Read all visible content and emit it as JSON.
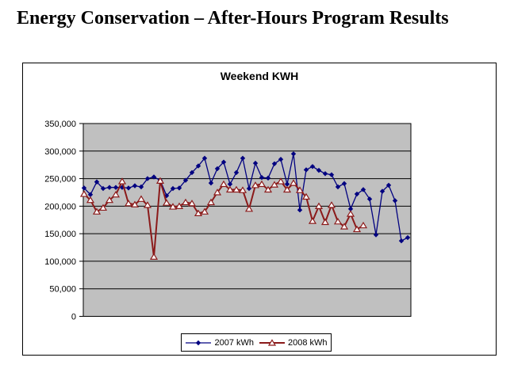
{
  "page": {
    "title": "Energy Conservation – After-Hours Program Results"
  },
  "chart": {
    "title": "Weekend KWH"
  },
  "chart_data": {
    "type": "line",
    "title": "Weekend KWH",
    "legend_position": "bottom",
    "plot_bg": "#c0c0c0",
    "gridline_color": "#000000",
    "x_axis": {
      "label": "",
      "tick_labels_visible": false
    },
    "y_axis": {
      "label": "",
      "min": 0,
      "max": 350000,
      "tick_interval": 50000,
      "tick_values": [
        350000,
        300000,
        250000,
        200000,
        150000,
        100000,
        50000,
        0
      ],
      "tick_labels": [
        "350,000",
        "300,000",
        "250,000",
        "200,000",
        "150,000",
        "100,000",
        "50,000",
        "0"
      ]
    },
    "series": [
      {
        "name": "2007 kWh",
        "color": "#000080",
        "marker": "diamond",
        "line_width": 1.3,
        "values": [
          233000,
          221000,
          244000,
          232000,
          234000,
          234000,
          234000,
          233000,
          237000,
          235000,
          250000,
          253000,
          247000,
          219000,
          232000,
          233000,
          247000,
          261000,
          273000,
          287000,
          242000,
          268000,
          280000,
          240000,
          261000,
          287000,
          232000,
          278000,
          252000,
          251000,
          277000,
          285000,
          240000,
          295000,
          193000,
          266000,
          272000,
          265000,
          259000,
          257000,
          235000,
          241000,
          195000,
          222000,
          230000,
          213000,
          148000,
          227000,
          238000,
          210000,
          137000,
          143000
        ]
      },
      {
        "name": "2008 kWh",
        "color": "#8b1a1a",
        "marker": "triangle-open",
        "line_width": 2,
        "values": [
          222000,
          211000,
          190000,
          197000,
          211000,
          221000,
          245000,
          205000,
          203000,
          213000,
          202000,
          108000,
          246000,
          206000,
          199000,
          200000,
          207000,
          205000,
          187000,
          190000,
          207000,
          225000,
          240000,
          230000,
          230000,
          229000,
          195000,
          238000,
          240000,
          230000,
          239000,
          245000,
          230000,
          242000,
          229000,
          217000,
          173000,
          200000,
          171000,
          202000,
          172000,
          163000,
          186000,
          158000,
          165000
        ]
      }
    ]
  }
}
